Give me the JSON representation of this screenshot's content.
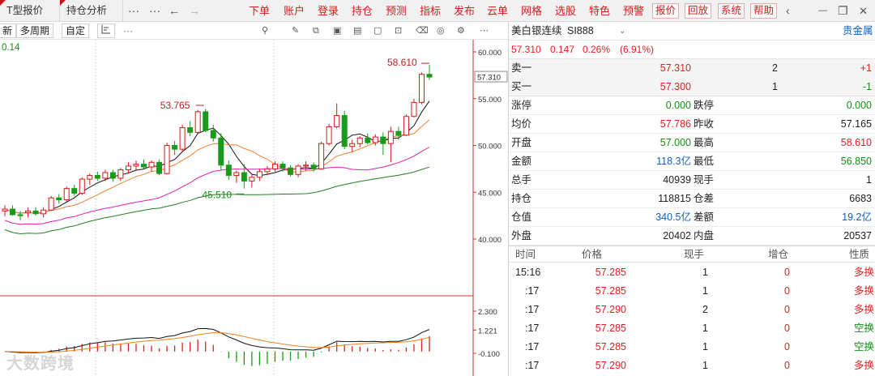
{
  "topbar": {
    "tabs": [
      "T型报价",
      "持仓分析"
    ],
    "nav": {
      "more": "···",
      "back": "←",
      "forward": "→"
    },
    "menu": [
      "下单",
      "账户",
      "登录",
      "持仓",
      "预测",
      "指标",
      "发布",
      "云单",
      "网格",
      "选股",
      "特色",
      "预警"
    ],
    "boxed": [
      "报价",
      "回放",
      "系统",
      "帮助"
    ],
    "window": {
      "menu": "‹",
      "min": "—",
      "restore": "❐",
      "close": "✕"
    }
  },
  "toolbar": {
    "buttons": [
      "新",
      "多周期",
      "自定"
    ],
    "more": "···"
  },
  "chart_data": {
    "type": "candlestick",
    "top_left_value": "0.14",
    "price_axis_labels": [
      "60.000",
      "55.000",
      "50.000",
      "45.000",
      "40.000"
    ],
    "price_axis_values": [
      60,
      55,
      50,
      45,
      40
    ],
    "current_price_tag": "57.310",
    "current_price": 57.31,
    "high_annotation": "58.610",
    "high_value": 58.61,
    "mid_high_annotation": "53.765",
    "mid_high_value": 53.765,
    "low_annotation": "45.510",
    "low_value": 45.51,
    "candles": [
      [
        43.0,
        43.6,
        42.4,
        43.2
      ],
      [
        43.2,
        43.6,
        42.5,
        42.6
      ],
      [
        42.6,
        43.0,
        42.0,
        42.5
      ],
      [
        42.8,
        43.4,
        42.3,
        43.0
      ],
      [
        43.0,
        43.4,
        42.5,
        42.7
      ],
      [
        42.7,
        43.4,
        42.3,
        43.1
      ],
      [
        43.1,
        44.6,
        43.0,
        44.4
      ],
      [
        44.4,
        44.8,
        43.8,
        44.2
      ],
      [
        44.2,
        45.6,
        44.0,
        45.4
      ],
      [
        45.4,
        45.8,
        44.6,
        44.9
      ],
      [
        44.9,
        46.6,
        44.7,
        46.4
      ],
      [
        46.4,
        47.0,
        45.8,
        46.8
      ],
      [
        46.8,
        47.2,
        46.2,
        46.5
      ],
      [
        46.5,
        47.4,
        46.2,
        47.1
      ],
      [
        47.1,
        47.4,
        46.1,
        46.5
      ],
      [
        46.5,
        47.6,
        46.2,
        47.4
      ],
      [
        47.4,
        48.2,
        47.0,
        47.8
      ],
      [
        47.8,
        48.4,
        47.3,
        48.0
      ],
      [
        48.0,
        48.5,
        47.5,
        47.7
      ],
      [
        47.7,
        48.4,
        47.2,
        48.2
      ],
      [
        48.2,
        48.5,
        46.8,
        47.0
      ],
      [
        47.0,
        50.3,
        46.9,
        50.0
      ],
      [
        50.0,
        50.5,
        49.0,
        49.6
      ],
      [
        49.6,
        52.2,
        49.4,
        51.9
      ],
      [
        51.9,
        52.6,
        51.0,
        51.4
      ],
      [
        51.4,
        53.8,
        51.2,
        53.6
      ],
      [
        53.6,
        53.9,
        51.4,
        51.6
      ],
      [
        51.6,
        52.2,
        50.4,
        50.8
      ],
      [
        50.8,
        51.3,
        47.4,
        47.9
      ],
      [
        47.9,
        48.4,
        46.3,
        46.8
      ],
      [
        46.8,
        47.3,
        46.0,
        47.1
      ],
      [
        47.1,
        48.0,
        45.4,
        46.2
      ],
      [
        46.2,
        47.0,
        45.5,
        46.6
      ],
      [
        46.6,
        47.5,
        46.2,
        47.2
      ],
      [
        47.2,
        47.8,
        46.8,
        47.5
      ],
      [
        47.5,
        48.3,
        47.2,
        48.0
      ],
      [
        48.0,
        48.3,
        47.2,
        47.6
      ],
      [
        47.6,
        47.9,
        46.7,
        46.9
      ],
      [
        46.9,
        48.0,
        46.6,
        47.8
      ],
      [
        47.8,
        48.3,
        47.3,
        47.9
      ],
      [
        47.9,
        48.2,
        47.2,
        47.5
      ],
      [
        47.5,
        50.4,
        47.4,
        50.2
      ],
      [
        50.2,
        52.3,
        50.0,
        52.0
      ],
      [
        52.0,
        54.5,
        51.8,
        53.2
      ],
      [
        53.2,
        53.7,
        49.6,
        49.9
      ],
      [
        49.9,
        50.6,
        49.3,
        50.2
      ],
      [
        50.2,
        51.0,
        49.8,
        50.8
      ],
      [
        50.8,
        51.3,
        50.1,
        50.3
      ],
      [
        50.3,
        51.2,
        50.0,
        50.9
      ],
      [
        50.9,
        51.4,
        49.0,
        50.2
      ],
      [
        50.2,
        52.0,
        48.2,
        51.5
      ],
      [
        51.5,
        52.0,
        50.6,
        51.1
      ],
      [
        51.1,
        53.3,
        51.0,
        53.1
      ],
      [
        53.1,
        55.0,
        53.0,
        54.6
      ],
      [
        54.6,
        57.8,
        54.4,
        57.6
      ],
      [
        57.6,
        58.61,
        57.0,
        57.31
      ]
    ],
    "ma_colors": [
      "#111111",
      "#f08030",
      "#e020b0",
      "#208020"
    ],
    "macd_axis_labels": [
      "2.300",
      "1.221",
      "-0.100"
    ],
    "macd_axis_values": [
      2.3,
      1.221,
      -0.1
    ],
    "macd_colors": [
      "#111111",
      "#f08020"
    ]
  },
  "panel": {
    "name": "美白银连续",
    "code": "SI888",
    "category": "贵金属",
    "price": "57.310",
    "change": "0.147",
    "pct": "0.26%",
    "pct_paren": "(6.91%)",
    "ask": {
      "label": "卖一",
      "price": "57.310",
      "vol": "2",
      "delta": "+1"
    },
    "bid": {
      "label": "买一",
      "price": "57.300",
      "vol": "1",
      "delta": "-1"
    },
    "stats": [
      {
        "l1": "涨停",
        "v1": "0.000",
        "c1": "green",
        "l2": "跌停",
        "v2": "0.000",
        "c2": "green"
      },
      {
        "l1": "均价",
        "v1": "57.786",
        "c1": "red",
        "l2": "昨收",
        "v2": "57.165",
        "c2": "black"
      },
      {
        "l1": "开盘",
        "v1": "57.000",
        "c1": "green",
        "l2": "最高",
        "v2": "58.610",
        "c2": "red"
      },
      {
        "l1": "金额",
        "v1": "118.3亿",
        "c1": "blue",
        "l2": "最低",
        "v2": "56.850",
        "c2": "green"
      },
      {
        "l1": "总手",
        "v1": "40939",
        "c1": "black",
        "l2": "现手",
        "v2": "1",
        "c2": "black"
      },
      {
        "l1": "持仓",
        "v1": "118815",
        "c1": "black",
        "l2": "仓差",
        "v2": "6683",
        "c2": "black"
      },
      {
        "l1": "仓值",
        "v1": "340.5亿",
        "c1": "blue",
        "l2": "差额",
        "v2": "19.2亿",
        "c2": "blue"
      },
      {
        "l1": "外盘",
        "v1": "20402",
        "c1": "black",
        "l2": "内盘",
        "v2": "20537",
        "c2": "black"
      }
    ],
    "trade_headers": [
      "时间",
      "价格",
      "现手",
      "增仓",
      "性质"
    ],
    "trades": [
      {
        "time": "15:16",
        "price": "57.285",
        "vol": "1",
        "oi": "0",
        "nature": "多换",
        "nc": "red"
      },
      {
        "time": ":17",
        "price": "57.285",
        "vol": "1",
        "oi": "0",
        "nature": "多换",
        "nc": "red"
      },
      {
        "time": ":17",
        "price": "57.290",
        "vol": "2",
        "oi": "0",
        "nature": "多换",
        "nc": "red"
      },
      {
        "time": ":17",
        "price": "57.285",
        "vol": "1",
        "oi": "0",
        "nature": "空换",
        "nc": "green"
      },
      {
        "time": ":17",
        "price": "57.285",
        "vol": "1",
        "oi": "0",
        "nature": "空换",
        "nc": "green"
      },
      {
        "time": ":17",
        "price": "57.290",
        "vol": "1",
        "oi": "0",
        "nature": "多换",
        "nc": "red"
      }
    ]
  },
  "watermark": "大数跨境"
}
